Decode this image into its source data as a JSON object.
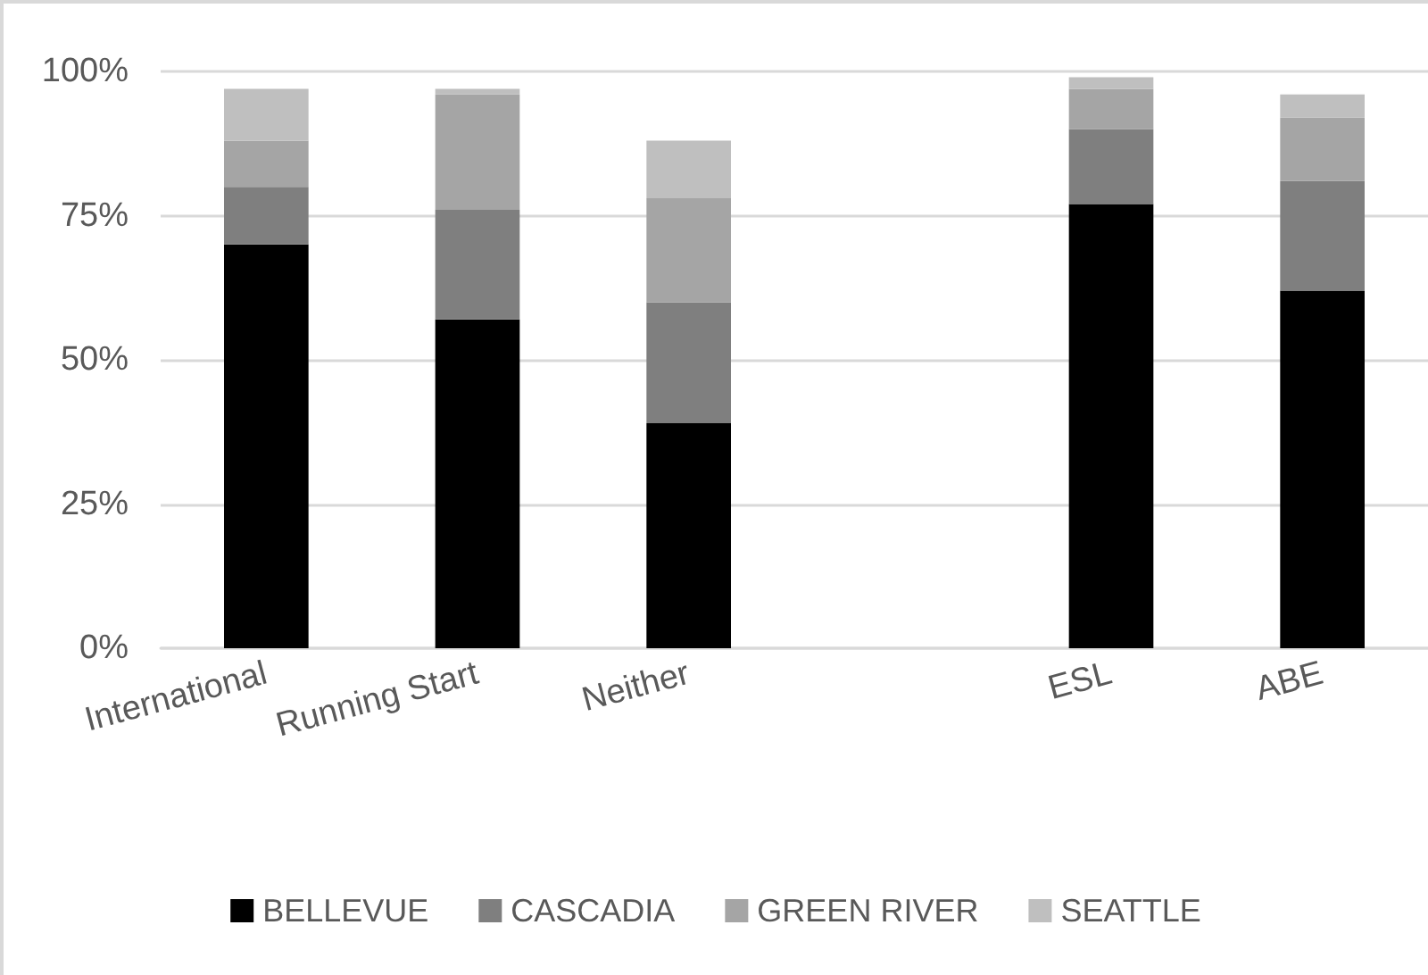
{
  "chart_data": {
    "type": "bar",
    "stacked": true,
    "categories": [
      "International",
      "Running Start",
      "Neither",
      null,
      "ESL",
      "ABE"
    ],
    "series": [
      {
        "name": "BELLEVUE",
        "color": "#000000",
        "values": [
          70,
          57,
          39,
          null,
          77,
          62
        ]
      },
      {
        "name": "CASCADIA",
        "color": "#7f7f7f",
        "values": [
          10,
          19,
          21,
          null,
          13,
          19
        ]
      },
      {
        "name": "GREEN RIVER",
        "color": "#a5a5a5",
        "values": [
          8,
          20,
          18,
          null,
          7,
          11
        ]
      },
      {
        "name": "SEATTLE",
        "color": "#bfbfbf",
        "values": [
          9,
          1,
          10,
          null,
          2,
          4
        ]
      }
    ],
    "ylim": [
      0,
      100
    ],
    "yticks": [
      {
        "value": 0,
        "label": "0%"
      },
      {
        "value": 25,
        "label": "25%"
      },
      {
        "value": 50,
        "label": "50%"
      },
      {
        "value": 75,
        "label": "75%"
      },
      {
        "value": 100,
        "label": "100%"
      }
    ],
    "grid": "y",
    "legend": "bottom"
  }
}
